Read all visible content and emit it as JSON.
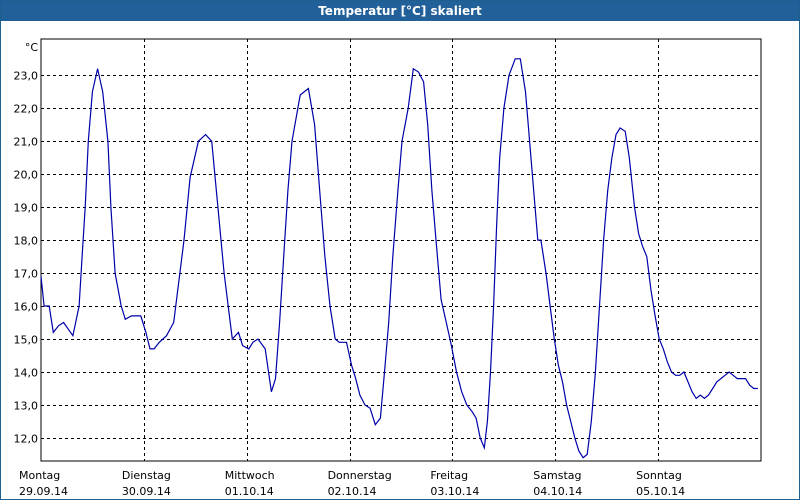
{
  "window": {
    "title": "Temperatur [°C] skaliert"
  },
  "chart_data": {
    "type": "line",
    "title": "Temperatur [°C] skaliert",
    "ylabel": "°C",
    "xlabel": "",
    "ylim": [
      11.3,
      24.1
    ],
    "yticks": [
      "12,0",
      "13,0",
      "14,0",
      "15,0",
      "16,0",
      "17,0",
      "18,0",
      "19,0",
      "20,0",
      "21,0",
      "22,0",
      "23,0"
    ],
    "ytick_values": [
      12,
      13,
      14,
      15,
      16,
      17,
      18,
      19,
      20,
      21,
      22,
      23
    ],
    "xlim": [
      0,
      7
    ],
    "x_units": "days since start (midnight, 29.09.14)",
    "day_labels": [
      {
        "day": "Montag",
        "date": "29.09.14"
      },
      {
        "day": "Dienstag",
        "date": "30.09.14"
      },
      {
        "day": "Mittwoch",
        "date": "01.10.14"
      },
      {
        "day": "Donnerstag",
        "date": "02.10.14"
      },
      {
        "day": "Freitag",
        "date": "03.10.14"
      },
      {
        "day": "Samstag",
        "date": "04.10.14"
      },
      {
        "day": "Sonntag",
        "date": "05.10.14"
      }
    ],
    "grid": true,
    "line_color": "#0000aa",
    "series": [
      {
        "name": "Temperatur",
        "points": [
          [
            0.0,
            16.9
          ],
          [
            0.03,
            16.0
          ],
          [
            0.08,
            16.0
          ],
          [
            0.12,
            15.2
          ],
          [
            0.17,
            15.4
          ],
          [
            0.22,
            15.5
          ],
          [
            0.31,
            15.1
          ],
          [
            0.37,
            16.0
          ],
          [
            0.4,
            17.5
          ],
          [
            0.43,
            19.0
          ],
          [
            0.46,
            21.0
          ],
          [
            0.5,
            22.5
          ],
          [
            0.55,
            23.2
          ],
          [
            0.6,
            22.5
          ],
          [
            0.65,
            21.0
          ],
          [
            0.68,
            19.0
          ],
          [
            0.72,
            17.0
          ],
          [
            0.78,
            16.0
          ],
          [
            0.82,
            15.6
          ],
          [
            0.88,
            15.7
          ],
          [
            0.97,
            15.7
          ],
          [
            1.02,
            15.2
          ],
          [
            1.06,
            14.7
          ],
          [
            1.1,
            14.7
          ],
          [
            1.15,
            14.9
          ],
          [
            1.22,
            15.1
          ],
          [
            1.29,
            15.5
          ],
          [
            1.33,
            16.5
          ],
          [
            1.39,
            18.0
          ],
          [
            1.45,
            19.9
          ],
          [
            1.53,
            21.0
          ],
          [
            1.6,
            21.2
          ],
          [
            1.66,
            21.0
          ],
          [
            1.72,
            19.0
          ],
          [
            1.78,
            17.0
          ],
          [
            1.86,
            15.0
          ],
          [
            1.92,
            15.2
          ],
          [
            1.96,
            14.8
          ],
          [
            2.02,
            14.7
          ],
          [
            2.06,
            14.9
          ],
          [
            2.11,
            15.0
          ],
          [
            2.18,
            14.7
          ],
          [
            2.24,
            13.4
          ],
          [
            2.28,
            13.8
          ],
          [
            2.32,
            15.5
          ],
          [
            2.36,
            17.5
          ],
          [
            2.4,
            19.5
          ],
          [
            2.44,
            21.0
          ],
          [
            2.52,
            22.4
          ],
          [
            2.6,
            22.6
          ],
          [
            2.66,
            21.5
          ],
          [
            2.71,
            19.5
          ],
          [
            2.76,
            17.5
          ],
          [
            2.81,
            16.0
          ],
          [
            2.86,
            15.0
          ],
          [
            2.9,
            14.9
          ],
          [
            2.97,
            14.9
          ],
          [
            3.02,
            14.2
          ],
          [
            3.06,
            13.8
          ],
          [
            3.1,
            13.3
          ],
          [
            3.15,
            13.0
          ],
          [
            3.2,
            12.9
          ],
          [
            3.25,
            12.4
          ],
          [
            3.3,
            12.6
          ],
          [
            3.34,
            14.0
          ],
          [
            3.38,
            15.5
          ],
          [
            3.42,
            17.5
          ],
          [
            3.47,
            19.5
          ],
          [
            3.51,
            21.0
          ],
          [
            3.57,
            22.0
          ],
          [
            3.62,
            23.2
          ],
          [
            3.67,
            23.1
          ],
          [
            3.72,
            22.8
          ],
          [
            3.76,
            21.5
          ],
          [
            3.8,
            19.5
          ],
          [
            3.84,
            18.0
          ],
          [
            3.89,
            16.2
          ],
          [
            3.94,
            15.5
          ],
          [
            3.99,
            14.8
          ],
          [
            4.04,
            14.0
          ],
          [
            4.09,
            13.4
          ],
          [
            4.14,
            13.0
          ],
          [
            4.19,
            12.8
          ],
          [
            4.23,
            12.6
          ],
          [
            4.27,
            12.0
          ],
          [
            4.31,
            11.7
          ],
          [
            4.34,
            12.5
          ],
          [
            4.37,
            14.0
          ],
          [
            4.4,
            16.0
          ],
          [
            4.43,
            18.5
          ],
          [
            4.46,
            20.5
          ],
          [
            4.5,
            22.0
          ],
          [
            4.55,
            23.0
          ],
          [
            4.61,
            23.5
          ],
          [
            4.66,
            23.5
          ],
          [
            4.71,
            22.5
          ],
          [
            4.75,
            21.0
          ],
          [
            4.79,
            19.5
          ],
          [
            4.83,
            18.0
          ],
          [
            4.86,
            18.0
          ],
          [
            4.91,
            17.0
          ],
          [
            4.95,
            16.0
          ],
          [
            4.99,
            15.0
          ],
          [
            5.03,
            14.2
          ],
          [
            5.07,
            13.7
          ],
          [
            5.11,
            13.0
          ],
          [
            5.15,
            12.5
          ],
          [
            5.19,
            12.0
          ],
          [
            5.23,
            11.6
          ],
          [
            5.27,
            11.4
          ],
          [
            5.31,
            11.5
          ],
          [
            5.35,
            12.5
          ],
          [
            5.39,
            14.0
          ],
          [
            5.43,
            16.0
          ],
          [
            5.47,
            18.0
          ],
          [
            5.51,
            19.5
          ],
          [
            5.55,
            20.5
          ],
          [
            5.59,
            21.2
          ],
          [
            5.63,
            21.4
          ],
          [
            5.68,
            21.3
          ],
          [
            5.72,
            20.5
          ],
          [
            5.77,
            19.0
          ],
          [
            5.81,
            18.2
          ],
          [
            5.85,
            17.8
          ],
          [
            5.89,
            17.5
          ],
          [
            5.93,
            16.5
          ],
          [
            5.97,
            15.7
          ],
          [
            6.01,
            15.0
          ],
          [
            6.05,
            14.7
          ],
          [
            6.09,
            14.3
          ],
          [
            6.13,
            14.0
          ],
          [
            6.17,
            13.9
          ],
          [
            6.21,
            13.9
          ],
          [
            6.25,
            14.0
          ],
          [
            6.29,
            13.7
          ],
          [
            6.33,
            13.4
          ],
          [
            6.37,
            13.2
          ],
          [
            6.41,
            13.3
          ],
          [
            6.45,
            13.2
          ],
          [
            6.49,
            13.3
          ],
          [
            6.53,
            13.5
          ],
          [
            6.57,
            13.7
          ],
          [
            6.61,
            13.8
          ],
          [
            6.65,
            13.9
          ],
          [
            6.69,
            14.0
          ],
          [
            6.73,
            13.9
          ],
          [
            6.77,
            13.8
          ],
          [
            6.81,
            13.8
          ],
          [
            6.85,
            13.8
          ],
          [
            6.89,
            13.6
          ],
          [
            6.93,
            13.5
          ],
          [
            6.97,
            13.5
          ]
        ]
      }
    ]
  }
}
